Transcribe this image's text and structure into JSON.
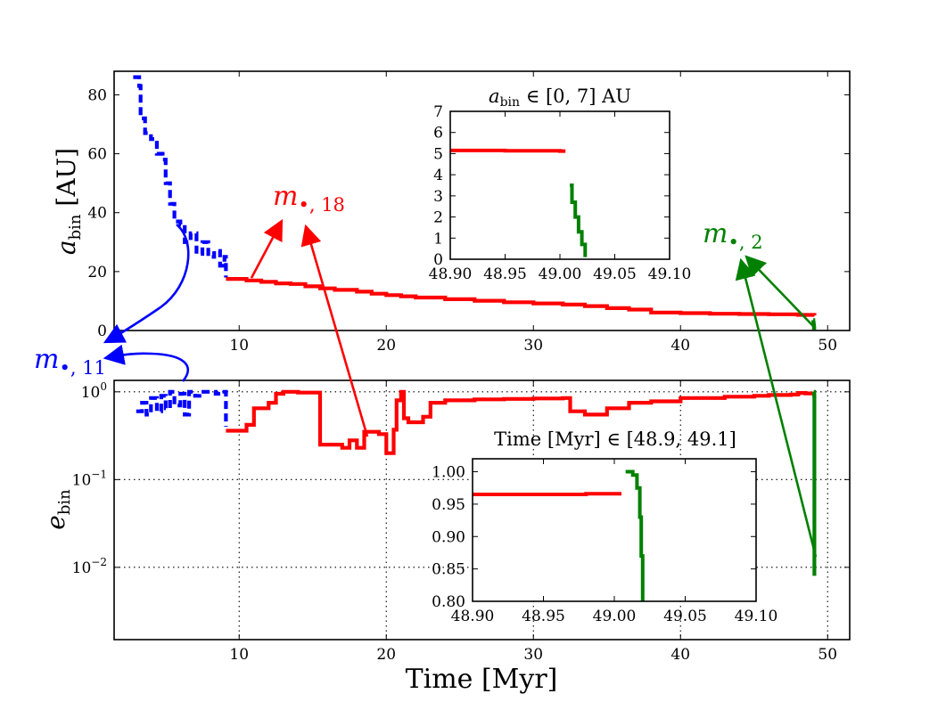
{
  "chart_data": [
    {
      "id": "top",
      "type": "line",
      "title": "",
      "xlabel": "",
      "ylabel_main": "a",
      "ylabel_sub": "bin",
      "ylabel_unit": " [AU]",
      "xlim": [
        1.5,
        51.5
      ],
      "ylim": [
        0,
        88
      ],
      "yscale": "linear",
      "xticks": [
        10,
        20,
        30,
        40,
        50
      ],
      "xtick_labels": [
        "10",
        "20",
        "30",
        "40",
        "50"
      ],
      "yticks": [
        0,
        20,
        40,
        60,
        80
      ],
      "ytick_labels": [
        "0",
        "20",
        "40",
        "60",
        "80"
      ],
      "series": [
        {
          "name": "m_bullet_11",
          "color": "#0000ff",
          "style": "dashed",
          "x": [
            2.8,
            3.2,
            3.3,
            3.6,
            4.0,
            4.4,
            4.8,
            5.0,
            5.3,
            5.6,
            6.0,
            6.3,
            6.7,
            7.1,
            7.5,
            7.9,
            8.3,
            8.7,
            9.0,
            9.1
          ],
          "y": [
            86,
            83,
            72,
            67,
            65,
            60,
            58,
            50,
            43,
            37,
            36,
            30,
            33,
            26,
            30,
            25,
            27,
            22,
            25,
            18
          ]
        },
        {
          "name": "m_bullet_18",
          "color": "#ff0000",
          "style": "solid",
          "x": [
            9.1,
            10.5,
            11.5,
            12.5,
            13.5,
            14.5,
            15.5,
            16.5,
            18,
            19,
            20,
            21,
            22,
            24,
            26,
            28,
            30,
            32,
            33.5,
            35,
            36.5,
            38,
            40,
            42,
            44,
            46,
            48,
            49.1
          ],
          "y": [
            17.5,
            17,
            16.5,
            16,
            15.8,
            15,
            14.3,
            13.8,
            13.2,
            12.5,
            12,
            11.6,
            11.2,
            10.6,
            10.1,
            9.6,
            9.2,
            8.8,
            8.3,
            7.6,
            7.1,
            6.1,
            5.9,
            5.7,
            5.6,
            5.5,
            5.3,
            5.1
          ]
        },
        {
          "name": "m_bullet_2",
          "color": "#008000",
          "style": "solid",
          "x": [
            49.02,
            49.03,
            49.05,
            49.07,
            49.09
          ],
          "y": [
            3.5,
            2.6,
            1.8,
            0.9,
            0.2
          ]
        }
      ]
    },
    {
      "id": "bottom",
      "type": "line",
      "title": "",
      "xlabel": "Time [Myr]",
      "ylabel_main": "e",
      "ylabel_sub": "bin",
      "ylabel_unit": "",
      "xlim": [
        1.5,
        51.5
      ],
      "ylim": [
        0.0015,
        1.35
      ],
      "yscale": "log",
      "grid": true,
      "xticks": [
        10,
        20,
        30,
        40,
        50
      ],
      "xtick_labels": [
        "10",
        "20",
        "30",
        "40",
        "50"
      ],
      "yticks": [
        0.01,
        0.1,
        1
      ],
      "ytick_base": "10",
      "ytick_exponents": [
        "−2",
        "−1",
        "0"
      ],
      "series": [
        {
          "name": "m_bullet_11",
          "color": "#0000ff",
          "style": "dashed",
          "x": [
            3.0,
            3.4,
            3.7,
            4.0,
            4.4,
            4.7,
            5.0,
            5.3,
            5.6,
            6.0,
            6.3,
            6.6,
            7.0,
            7.3,
            7.7,
            8.0,
            8.4,
            8.8,
            9.1,
            9.1
          ],
          "y": [
            0.6,
            0.75,
            0.55,
            0.85,
            0.6,
            0.9,
            0.65,
            1.0,
            0.7,
            0.95,
            0.55,
            1.0,
            0.9,
            1.0,
            1.0,
            1.0,
            0.95,
            1.0,
            1.0,
            0.4
          ]
        },
        {
          "name": "m_bullet_18",
          "color": "#ff0000",
          "style": "solid",
          "x": [
            9.1,
            10.5,
            11.0,
            12.0,
            12.5,
            13.0,
            14.0,
            15.5,
            15.5,
            16.5,
            17.0,
            17.5,
            18.0,
            18.5,
            19.5,
            20.0,
            20.5,
            20.7,
            21.0,
            21.2,
            21.5,
            22.5,
            23.0,
            24.0,
            26.0,
            28.0,
            30.0,
            32.0,
            32.5,
            33.5,
            35.0,
            36.5,
            38.0,
            40.0,
            43.0,
            45.0,
            46.0,
            47.5,
            48.0,
            48.5,
            49.05
          ],
          "y": [
            0.36,
            0.42,
            0.65,
            0.75,
            0.95,
            1.0,
            0.98,
            0.97,
            0.25,
            0.25,
            0.23,
            0.28,
            0.23,
            0.35,
            0.33,
            0.2,
            0.37,
            0.8,
            1.0,
            0.5,
            0.45,
            0.52,
            0.75,
            0.8,
            0.82,
            0.83,
            0.84,
            0.85,
            0.6,
            0.55,
            0.65,
            0.75,
            0.78,
            0.85,
            0.88,
            0.9,
            0.92,
            0.93,
            0.97,
            0.96,
            0.97
          ]
        },
        {
          "name": "m_bullet_2",
          "color": "#008000",
          "style": "solid",
          "x": [
            49.06,
            49.08,
            49.09,
            49.1,
            49.1
          ],
          "y": [
            1.0,
            0.99,
            0.9,
            0.3,
            0.008
          ]
        }
      ]
    },
    {
      "id": "inset-top",
      "type": "line",
      "title_main": "a",
      "title_sub": "bin",
      "title_rest": " ∈ [0, 7] AU",
      "xlim": [
        48.9,
        49.1
      ],
      "ylim": [
        0,
        7
      ],
      "xticks": [
        48.9,
        48.95,
        49.0,
        49.05,
        49.1
      ],
      "xtick_labels": [
        "48.90",
        "48.95",
        "49.00",
        "49.05",
        "49.10"
      ],
      "yticks": [
        0,
        1,
        2,
        3,
        4,
        5,
        6,
        7
      ],
      "ytick_labels": [
        "0",
        "1",
        "2",
        "3",
        "4",
        "5",
        "6",
        "7"
      ],
      "series": [
        {
          "name": "red",
          "color": "#ff0000",
          "style": "solid",
          "x": [
            48.9,
            48.95,
            49.0,
            49.005
          ],
          "y": [
            5.15,
            5.13,
            5.12,
            5.12
          ]
        },
        {
          "name": "green",
          "color": "#008000",
          "style": "solid",
          "x": [
            49.009,
            49.011,
            49.014,
            49.017,
            49.02,
            49.023
          ],
          "y": [
            3.5,
            2.7,
            2.0,
            1.3,
            0.7,
            0.1
          ]
        }
      ]
    },
    {
      "id": "inset-bottom",
      "type": "line",
      "title": "Time [Myr] ∈ [48.9, 49.1]",
      "xlim": [
        48.9,
        49.1
      ],
      "ylim": [
        0.8,
        1.02
      ],
      "xticks": [
        48.9,
        48.95,
        49.0,
        49.05,
        49.1
      ],
      "xtick_labels": [
        "48.90",
        "48.95",
        "49.00",
        "49.05",
        "49.10"
      ],
      "yticks": [
        0.8,
        0.85,
        0.9,
        0.95,
        1.0
      ],
      "ytick_labels": [
        "0.80",
        "0.85",
        "0.90",
        "0.95",
        "1.00"
      ],
      "series": [
        {
          "name": "red",
          "color": "#ff0000",
          "style": "solid",
          "x": [
            48.9,
            48.95,
            48.98,
            49.005
          ],
          "y": [
            0.965,
            0.965,
            0.966,
            0.966
          ]
        },
        {
          "name": "green",
          "color": "#008000",
          "style": "solid",
          "x": [
            49.008,
            49.013,
            49.016,
            49.018,
            49.019,
            49.02
          ],
          "y": [
            1.0,
            0.995,
            0.975,
            0.93,
            0.87,
            0.8
          ]
        }
      ]
    }
  ],
  "annotations": {
    "m11": {
      "symbol": "m",
      "subscript": "•, 11",
      "color": "#0000ff"
    },
    "m18": {
      "symbol": "m",
      "subscript": "•, 18",
      "color": "#ff0000"
    },
    "m2": {
      "symbol": "m",
      "subscript": "•, 2",
      "color": "#008000"
    }
  }
}
